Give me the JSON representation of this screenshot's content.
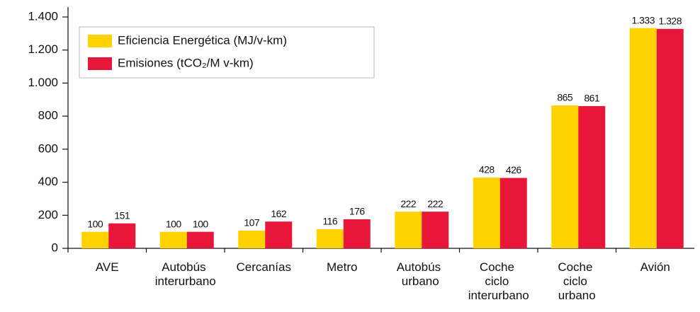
{
  "chart_data": {
    "type": "bar",
    "categories": [
      "AVE",
      "Autobús interurbano",
      "Cercanías",
      "Metro",
      "Autobús urbano",
      "Coche ciclo interurbano",
      "Coche ciclo urbano",
      "Avión"
    ],
    "series": [
      {
        "name": "Eficiencia Energética (MJ/v-km)",
        "color": "#ffd200",
        "values": [
          100,
          100,
          107,
          116,
          222,
          428,
          865,
          1333
        ],
        "value_labels": [
          "100",
          "100",
          "107",
          "116",
          "222",
          "428",
          "865",
          "1.333"
        ]
      },
      {
        "name": "Emisiones (tCO₂/M v-km)",
        "color": "#e8173a",
        "values": [
          151,
          100,
          162,
          176,
          222,
          426,
          861,
          1328
        ],
        "value_labels": [
          "151",
          "100",
          "162",
          "176",
          "222",
          "426",
          "861",
          "1.328"
        ]
      }
    ],
    "ylim": [
      0,
      1400
    ],
    "yticks": [
      0,
      200,
      400,
      600,
      800,
      {
        "value": 1000,
        "label": "1.000"
      },
      {
        "value": 1200,
        "label": "1.200"
      },
      {
        "value": 1400,
        "label": "1.400"
      }
    ],
    "legend": "upper left"
  }
}
